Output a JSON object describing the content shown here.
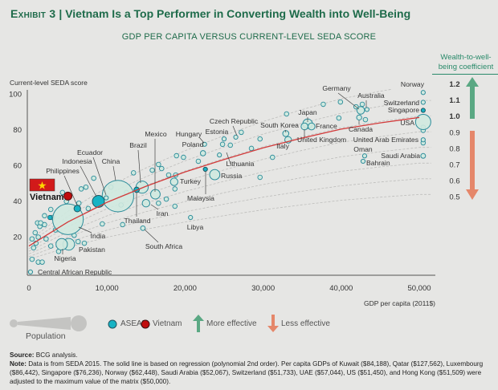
{
  "header": {
    "exhibit_label": "Exhibit 3",
    "title": "Vietnam Is a Top Performer in Converting Wealth into Well-Being",
    "subtitle": "GDP PER CAPITA VERSUS CURRENT-LEVEL SEDA SCORE"
  },
  "colors": {
    "brand": "#1e6b4a",
    "bubble_fill": "#cfe9df",
    "bubble_stroke": "#2b8c9a",
    "asean": "#17b3c4",
    "vietnam": "#c00d0d",
    "regression": "#d23a3a",
    "more_effective": "#5aa883",
    "less_effective": "#e5876a"
  },
  "chart_data": {
    "type": "scatter",
    "xlabel": "GDP per capita (2011$)",
    "ylabel": "Current-level SEDA score",
    "xlim": [
      0,
      50000
    ],
    "ylim": [
      0,
      100
    ],
    "xticks": [
      "0",
      "10,000",
      "20,000",
      "30,000",
      "40,000",
      "50,000"
    ],
    "xtick_values": [
      0,
      10000,
      20000,
      30000,
      40000,
      50000
    ],
    "yticks": [
      "100",
      "80",
      "60",
      "40",
      "20"
    ],
    "ytick_values": [
      100,
      80,
      60,
      40,
      20
    ],
    "coefficient_axis": {
      "title": "Wealth-to-well-being coefficient",
      "ticks": [
        "1.2",
        "1.1",
        "1.0",
        "0.9",
        "0.8",
        "0.7",
        "0.6",
        "0.5"
      ],
      "values": [
        1.2,
        1.1,
        1.0,
        0.9,
        0.8,
        0.7,
        0.6,
        0.5
      ]
    },
    "regression_line": {
      "label": "polynomial 2nd order",
      "x": [
        0,
        5000,
        10000,
        15000,
        20000,
        25000,
        30000,
        35000,
        40000,
        45000,
        50000
      ],
      "y": [
        15,
        28.5,
        39.5,
        48.5,
        56.5,
        63.5,
        70,
        75.5,
        80.5,
        84,
        87
      ]
    },
    "countries": [
      {
        "name": "Vietnam",
        "x": 5000,
        "y": 43,
        "pop": 92,
        "group": "vietnam"
      },
      {
        "name": "Philippines",
        "x": 6200,
        "y": 36,
        "pop": 60,
        "group": "asean"
      },
      {
        "name": "Indonesia",
        "x": 8900,
        "y": 40,
        "pop": 200,
        "group": "asean"
      },
      {
        "name": "Ecuador",
        "x": 9900,
        "y": 42,
        "pop": 16,
        "group": "other"
      },
      {
        "name": "China",
        "x": 11400,
        "y": 43,
        "pop": 1370,
        "group": "other"
      },
      {
        "name": "Brazil",
        "x": 14500,
        "y": 48,
        "pop": 205,
        "group": "other"
      },
      {
        "name": "Thailand",
        "x": 13800,
        "y": 46.5,
        "pop": 40,
        "group": "asean"
      },
      {
        "name": "Mexico",
        "x": 16200,
        "y": 44,
        "pop": 125,
        "group": "other"
      },
      {
        "name": "India",
        "x": 5000,
        "y": 30,
        "pop": 1300,
        "group": "other"
      },
      {
        "name": "Pakistan",
        "x": 5100,
        "y": 16,
        "pop": 190,
        "group": "other"
      },
      {
        "name": "Nigeria",
        "x": 4200,
        "y": 16,
        "pop": 180,
        "group": "other"
      },
      {
        "name": "Central African Republic",
        "x": 200,
        "y": 0.5,
        "pop": 5,
        "group": "other"
      },
      {
        "name": "South Africa",
        "x": 14600,
        "y": 25,
        "pop": 30,
        "group": "other"
      },
      {
        "name": "Iran",
        "x": 15000,
        "y": 39,
        "pop": 79,
        "group": "other"
      },
      {
        "name": "Libya",
        "x": 20700,
        "y": 31,
        "pop": 6,
        "group": "other"
      },
      {
        "name": "Turkey",
        "x": 18600,
        "y": 51,
        "pop": 78,
        "group": "other"
      },
      {
        "name": "Malaysia",
        "x": 22600,
        "y": 58,
        "pop": 15,
        "group": "asean"
      },
      {
        "name": "Russia",
        "x": 23800,
        "y": 55,
        "pop": 144,
        "group": "other"
      },
      {
        "name": "Hungary",
        "x": 22500,
        "y": 72,
        "pop": 10,
        "group": "other"
      },
      {
        "name": "Poland",
        "x": 22300,
        "y": 67,
        "pop": 38,
        "group": "other"
      },
      {
        "name": "Estonia",
        "x": 25000,
        "y": 75,
        "pop": 2,
        "group": "other"
      },
      {
        "name": "Czech Republic",
        "x": 26500,
        "y": 76,
        "pop": 10,
        "group": "other"
      },
      {
        "name": "Lithuania",
        "x": 24400,
        "y": 66,
        "pop": 3,
        "group": "other"
      },
      {
        "name": "South Korea",
        "x": 32900,
        "y": 78,
        "pop": 51,
        "group": "other"
      },
      {
        "name": "Italy",
        "x": 33200,
        "y": 74.5,
        "pop": 61,
        "group": "other"
      },
      {
        "name": "Japan",
        "x": 35700,
        "y": 83.5,
        "pop": 127,
        "group": "other"
      },
      {
        "name": "United Kingdom",
        "x": 35300,
        "y": 82,
        "pop": 65,
        "group": "other"
      },
      {
        "name": "France",
        "x": 36200,
        "y": 82,
        "pop": 66,
        "group": "other"
      },
      {
        "name": "Germany",
        "x": 42500,
        "y": 91,
        "pop": 81,
        "group": "other"
      },
      {
        "name": "Australia",
        "x": 43300,
        "y": 91.5,
        "pop": 24,
        "group": "other"
      },
      {
        "name": "Canada",
        "x": 42300,
        "y": 87,
        "pop": 36,
        "group": "other"
      },
      {
        "name": "Norway",
        "x": 50500,
        "y": 101,
        "pop": 5,
        "group": "other"
      },
      {
        "name": "Switzerland",
        "x": 50500,
        "y": 95.5,
        "pop": 8,
        "group": "other"
      },
      {
        "name": "Singapore",
        "x": 50500,
        "y": 91,
        "pop": 5,
        "group": "asean"
      },
      {
        "name": "USA",
        "x": 50500,
        "y": 84.5,
        "pop": 320,
        "group": "other"
      },
      {
        "name": "United Arab Emirates",
        "x": 50500,
        "y": 74.5,
        "pop": 9,
        "group": "other"
      },
      {
        "name": "Oman",
        "x": 43000,
        "y": 65.5,
        "pop": 4,
        "group": "other"
      },
      {
        "name": "Saudi Arabia",
        "x": 50500,
        "y": 65.5,
        "pop": 31,
        "group": "other"
      },
      {
        "name": "Bahrain",
        "x": 42800,
        "y": 62.5,
        "pop": 1,
        "group": "other"
      }
    ],
    "other_points": [
      [
        8300,
        53
      ],
      [
        6700,
        47
      ],
      [
        7300,
        48
      ],
      [
        4300,
        45
      ],
      [
        6400,
        39
      ],
      [
        7600,
        36
      ],
      [
        2800,
        35.5
      ],
      [
        2000,
        32
      ],
      [
        1100,
        28
      ],
      [
        1400,
        26
      ],
      [
        2000,
        27
      ],
      [
        800,
        22.5
      ],
      [
        1200,
        20
      ],
      [
        2200,
        19
      ],
      [
        400,
        19
      ],
      [
        900,
        16.6
      ],
      [
        2800,
        15
      ],
      [
        600,
        14
      ],
      [
        400,
        7.6
      ],
      [
        1200,
        6
      ],
      [
        1700,
        6
      ],
      [
        9400,
        27.4
      ],
      [
        12000,
        27
      ],
      [
        13400,
        56
      ],
      [
        7100,
        16.6
      ],
      [
        6300,
        17.5
      ],
      [
        1500,
        28
      ],
      [
        18900,
        65.6
      ],
      [
        19800,
        64.7
      ],
      [
        21700,
        62.5
      ],
      [
        24800,
        72
      ],
      [
        25800,
        71.5
      ],
      [
        27200,
        78.7
      ],
      [
        28500,
        69.7
      ],
      [
        29600,
        75
      ],
      [
        31200,
        64.7
      ],
      [
        29600,
        53.5
      ],
      [
        17900,
        54.8
      ],
      [
        18800,
        54.8
      ],
      [
        16600,
        60.7
      ],
      [
        17000,
        58.4
      ],
      [
        15800,
        57.5
      ],
      [
        18700,
        47
      ],
      [
        17600,
        41.3
      ],
      [
        16600,
        39
      ],
      [
        18700,
        37.3
      ],
      [
        33000,
        89
      ],
      [
        37700,
        94.4
      ],
      [
        39900,
        95.7
      ],
      [
        39700,
        86.7
      ],
      [
        43100,
        85.8
      ],
      [
        41900,
        93
      ],
      [
        42700,
        94.4
      ],
      [
        50500,
        81.5
      ],
      [
        50500,
        79.8
      ],
      [
        50500,
        72.8
      ],
      [
        3000,
        31
      ],
      [
        12500,
        45
      ],
      [
        10500,
        48
      ],
      [
        11800,
        38
      ],
      [
        4800,
        40
      ],
      [
        3400,
        24
      ],
      [
        5800,
        21
      ],
      [
        3800,
        12
      ]
    ],
    "asean_points": [
      [
        2700,
        31
      ]
    ]
  },
  "legend": {
    "population": "Population",
    "asean": "ASEAN",
    "vietnam": "Vietnam",
    "more": "More effective",
    "less": "Less effective"
  },
  "notes": {
    "source_label": "Source:",
    "source": "BCG analysis.",
    "note_label": "Note:",
    "note": "Data is from SEDA 2015. The solid line is based on regression (polynomial 2nd order). Per capita GDPs of Kuwait ($84,188), Qatar ($127,562), Luxembourg ($86,442), Singapore ($76,236), Norway ($62,448), Saudi Arabia ($52,067), Switzerland ($51,733), UAE ($57,044), US ($51,450), and Hong Kong ($51,509) were adjusted to the maximum value of the matrix ($50,000)."
  }
}
